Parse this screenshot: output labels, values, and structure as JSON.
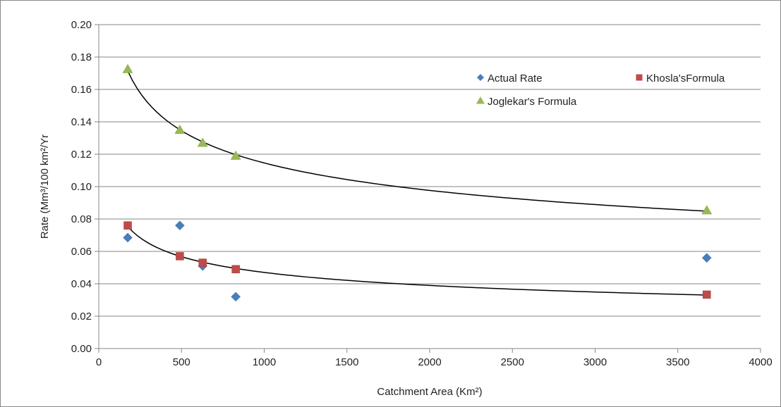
{
  "chart_data": {
    "type": "scatter",
    "title": "",
    "xlabel": "Catchment Area (Km²)",
    "ylabel": "Rate (Mm³/100 km²/Yr",
    "xlim": [
      0,
      4000
    ],
    "ylim": [
      0,
      0.2
    ],
    "x_ticks": [
      "0",
      "500",
      "1000",
      "1500",
      "2000",
      "2500",
      "3000",
      "3500",
      "4000"
    ],
    "y_ticks": [
      "0.00",
      "0.02",
      "0.04",
      "0.06",
      "0.08",
      "0.10",
      "0.12",
      "0.14",
      "0.16",
      "0.18",
      "0.20"
    ],
    "grid": "horizontal",
    "legend_position": "top-right",
    "series": [
      {
        "name": "Actual Rate",
        "marker": "diamond",
        "color": "#4a7ebb",
        "points": [
          [
            175,
            0.0685
          ],
          [
            490,
            0.076
          ],
          [
            628,
            0.051
          ],
          [
            828,
            0.032
          ],
          [
            3675,
            0.056
          ]
        ]
      },
      {
        "name": "Khosla'sFormula",
        "marker": "square",
        "color": "#be4b48",
        "points": [
          [
            175,
            0.076
          ],
          [
            490,
            0.057
          ],
          [
            628,
            0.053
          ],
          [
            828,
            0.049
          ],
          [
            3675,
            0.0333
          ]
        ]
      },
      {
        "name": "Joglekar's Formula",
        "marker": "triangle",
        "color": "#98b954",
        "points": [
          [
            175,
            0.1725
          ],
          [
            490,
            0.135
          ],
          [
            628,
            0.127
          ],
          [
            828,
            0.119
          ],
          [
            3675,
            0.0853
          ]
        ]
      }
    ],
    "trendlines": [
      {
        "for": "Khosla'sFormula",
        "type": "power",
        "color": "#000000"
      },
      {
        "for": "Joglekar's Formula",
        "type": "power",
        "color": "#000000"
      }
    ]
  }
}
